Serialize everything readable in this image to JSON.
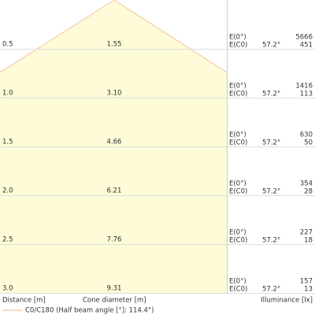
{
  "rows": [
    {
      "distance": "0.5",
      "diameter": "1.55",
      "e0_label": "E(0°)",
      "ec0_label": "E(C0)",
      "angle": "57.2°",
      "e0": "5666",
      "ec0": "451"
    },
    {
      "distance": "1.0",
      "diameter": "3.10",
      "e0_label": "E(0°)",
      "ec0_label": "E(C0)",
      "angle": "57.2°",
      "e0": "1416",
      "ec0": "113"
    },
    {
      "distance": "1.5",
      "diameter": "4.66",
      "e0_label": "E(0°)",
      "ec0_label": "E(C0)",
      "angle": "57.2°",
      "e0": "630",
      "ec0": "50"
    },
    {
      "distance": "2.0",
      "diameter": "6.21",
      "e0_label": "E(0°)",
      "ec0_label": "E(C0)",
      "angle": "57.2°",
      "e0": "354",
      "ec0": "28"
    },
    {
      "distance": "2.5",
      "diameter": "7.76",
      "e0_label": "E(0°)",
      "ec0_label": "E(C0)",
      "angle": "57.2°",
      "e0": "227",
      "ec0": "18"
    },
    {
      "distance": "3.0",
      "diameter": "9.31",
      "e0_label": "E(0°)",
      "ec0_label": "E(C0)",
      "angle": "57.2°",
      "e0": "157",
      "ec0": "13"
    }
  ],
  "footer": {
    "distance": "Distance [m]",
    "diameter": "Cone diameter [m]",
    "illuminance": "Illuminance [lx]"
  },
  "legend": "C0/C180 (Half beam angle [°]: 114.4°)"
}
